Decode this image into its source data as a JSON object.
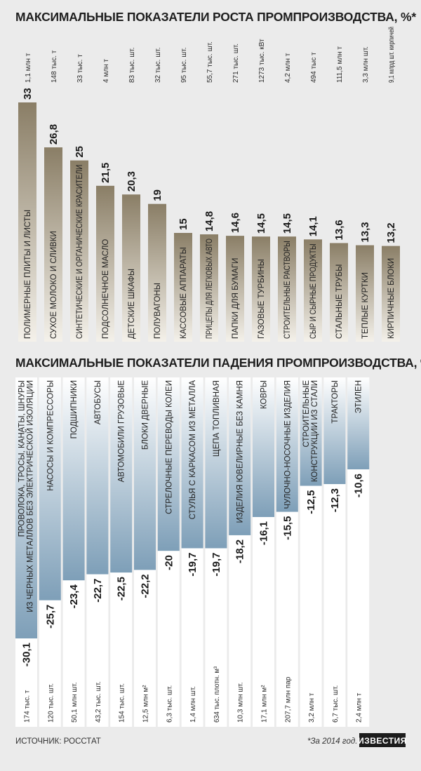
{
  "growth": {
    "title": "МАКСИМАЛЬНЫЕ ПОКАЗАТЕЛИ РОСТА ПРОМПРОИЗВОДСТВА, %*",
    "colors": {
      "bar_top": "#8a7e66",
      "bar_bottom": "#f4f1ea"
    }
  },
  "decline": {
    "title": "МАКСИМАЛЬНЫЕ ПОКАЗАТЕЛИ ПАДЕНИЯ ПРОМПРОИЗВОДСТВА, %*",
    "colors": {
      "bar_top": "#ffffff",
      "bar_bottom": "#7e9fb8"
    }
  },
  "footer": {
    "source": "ИСТОЧНИК: РОССТАТ",
    "note": "*За 2014 год.",
    "logo": "ИЗВЕСТИЯ"
  },
  "chart_data": [
    {
      "type": "bar",
      "title": "МАКСИМАЛЬНЫЕ ПОКАЗАТЕЛИ РОСТА ПРОМПРОИЗВОДСТВА, %*",
      "categories": [
        "ПОЛИМЕРНЫЕ ПЛИТЫ И ЛИСТЫ",
        "СУХОЕ МОЛОКО И СЛИВКИ",
        "СИНТЕТИЧЕСКИЕ И ОРГАНИЧЕСКИЕ КРАСИТЕЛИ",
        "ПОДСОЛНЕЧНОЕ МАСЛО",
        "ДЕТСКИЕ ШКАФЫ",
        "ПОЛУВАГОНЫ",
        "КАССОВЫЕ АППАРАТЫ",
        "ПРИЦЕПЫ ДЛЯ ЛЕГКОВЫХ АВТО",
        "ПАПКИ ДЛЯ БУМАГИ",
        "ГАЗОВЫЕ ТУРБИНЫ",
        "СТРОИТЕЛЬНЫЕ РАСТВОРЫ",
        "СЫР И СЫРНЫЕ ПРОДУКТЫ",
        "СТАЛЬНЫЕ ТРУБЫ",
        "ТЕПЛЫЕ КУРТКИ",
        "КИРПИЧНЫЕ БЛОКИ"
      ],
      "values": [
        33,
        26.8,
        25,
        21.5,
        20.3,
        19,
        15,
        14.8,
        14.6,
        14.5,
        14.5,
        14.1,
        13.6,
        13.3,
        13.2
      ],
      "value_labels": [
        "33",
        "26,8",
        "25",
        "21,5",
        "20,3",
        "19",
        "15",
        "14,8",
        "14,6",
        "14,5",
        "14,5",
        "14,1",
        "13,6",
        "13,3",
        "13,2"
      ],
      "units": [
        "1,1 млн т",
        "148 тыс. т",
        "33 тыс. т",
        "4 млн т",
        "83 тыс. шт.",
        "32 тыс. шт.",
        "95 тыс. шт.",
        "55,7 тыс. шт.",
        "271 тыс. шт.",
        "1273 тыс. кВт",
        "4,2 млн т",
        "494 тыс т",
        "111,5 млн т",
        "3,3 млн шт.",
        "9,1 млрд шт. кирпичей"
      ],
      "ylim": [
        0,
        33
      ]
    },
    {
      "type": "bar",
      "title": "МАКСИМАЛЬНЫЕ ПОКАЗАТЕЛИ ПАДЕНИЯ ПРОМПРОИЗВОДСТВА, %*",
      "categories": [
        [
          "ПРОВОЛОКА, ТРОСЫ, КАНАТЫ, ШНУРЫ",
          "ИЗ ЧЕРНЫХ МЕТАЛЛОВ БЕЗ ЭЛЕКТРИЧЕСКОЙ ИЗОЛЯЦИИ"
        ],
        [
          "НАСОСЫ И КОМПРЕССОРЫ"
        ],
        [
          "ПОДШИПНИКИ"
        ],
        [
          "АВТОБУСЫ"
        ],
        [
          "АВТОМОБИЛИ ГРУЗОВЫЕ"
        ],
        [
          "БЛОКИ ДВЕРНЫЕ"
        ],
        [
          "СТРЕЛОЧНЫЕ ПЕРЕВОДЫ КОЛЕИ"
        ],
        [
          "СТУЛЬЯ С КАРКАСОМ ИЗ МЕТАЛЛА"
        ],
        [
          "ЩЕПА ТОПЛИВНАЯ"
        ],
        [
          "ИЗДЕЛИЯ ЮВЕЛИРНЫЕ БЕЗ КАМНЯ"
        ],
        [
          "КОВРЫ"
        ],
        [
          "ЧУЛОЧНО-НОСОЧНЫЕ ИЗДЕЛИЯ"
        ],
        [
          "СТРОИТЕЛЬНЫЕ",
          "КОНСТРУКЦИИ ИЗ СТАЛИ"
        ],
        [
          "ТРАКТОРЫ"
        ],
        [
          "ЭТИЛЕН"
        ]
      ],
      "values": [
        -30.1,
        -25.7,
        -23.4,
        -22.7,
        -22.5,
        -22.2,
        -20,
        -19.7,
        -19.7,
        -18.2,
        -16.1,
        -15.5,
        -12.5,
        -12.3,
        -10.6
      ],
      "value_labels": [
        "-30,1",
        "-25,7",
        "-23,4",
        "-22,7",
        "-22,5",
        "-22,2",
        "-20",
        "-19,7",
        "-19,7",
        "-18,2",
        "-16,1",
        "-15,5",
        "-12,5",
        "-12,3",
        "-10,6"
      ],
      "units": [
        "174 тыс. т",
        "120 тыс. шт.",
        "50,1 млн шт.",
        "43,2 тыс. шт.",
        "154 тыс. шт.",
        "12,5 млн м²",
        "6,3 тыс. шт.",
        "1,4 млн шт.",
        "634 тыс. плотн. м³",
        "10,3 млн шт.",
        "17,1 млн м²",
        "207,7 млн пар",
        "3,2 млн т",
        "6,7 тыс. шт.",
        "2,4 млн т"
      ],
      "ylim": [
        -30.1,
        0
      ]
    }
  ]
}
